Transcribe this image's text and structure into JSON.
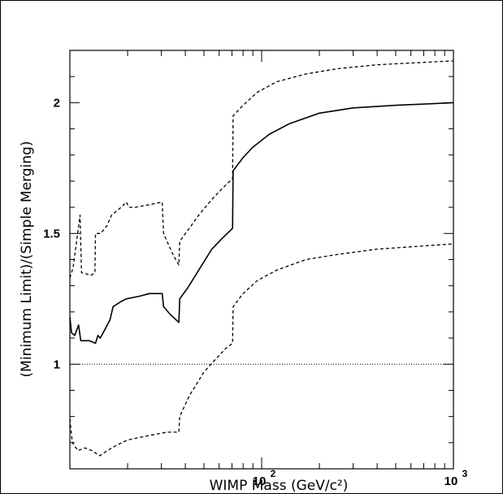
{
  "chart_data": {
    "type": "line",
    "title": "",
    "xlabel": "WIMP Mass (GeV/c²)",
    "ylabel": "(Minimum Limit)/(Simple Merging)",
    "xscale": "log",
    "xlim": [
      10,
      1000
    ],
    "ylim": [
      0.6,
      2.2
    ],
    "grid": false,
    "x_tick_labels": [
      {
        "value": 100,
        "base": "10",
        "exp": "2"
      },
      {
        "value": 1000,
        "base": "10",
        "exp": "3"
      }
    ],
    "y_tick_labels": [
      {
        "value": 1,
        "label": "1"
      },
      {
        "value": 1.5,
        "label": "1.5"
      },
      {
        "value": 2,
        "label": "2"
      }
    ],
    "reference_line": {
      "y": 1.0,
      "style": "dotted"
    },
    "series": [
      {
        "style": "solid",
        "points": [
          [
            10,
            1.18
          ],
          [
            10.2,
            1.12
          ],
          [
            10.6,
            1.11
          ],
          [
            11.1,
            1.15
          ],
          [
            11.4,
            1.09
          ],
          [
            12.6,
            1.09
          ],
          [
            13.6,
            1.08
          ],
          [
            14.0,
            1.11
          ],
          [
            14.4,
            1.1
          ],
          [
            15.4,
            1.14
          ],
          [
            16.2,
            1.17
          ],
          [
            16.8,
            1.22
          ],
          [
            18.5,
            1.24
          ],
          [
            19.7,
            1.25
          ],
          [
            23,
            1.26
          ],
          [
            26,
            1.27
          ],
          [
            30.3,
            1.27
          ],
          [
            30.8,
            1.22
          ],
          [
            33.4,
            1.19
          ],
          [
            37,
            1.16
          ],
          [
            37.4,
            1.25
          ],
          [
            41,
            1.29
          ],
          [
            47,
            1.36
          ],
          [
            55,
            1.44
          ],
          [
            62,
            1.48
          ],
          [
            70.5,
            1.52
          ],
          [
            71,
            1.74
          ],
          [
            80,
            1.79
          ],
          [
            90,
            1.83
          ],
          [
            110,
            1.88
          ],
          [
            140,
            1.92
          ],
          [
            200,
            1.96
          ],
          [
            300,
            1.98
          ],
          [
            500,
            1.99
          ],
          [
            1000,
            2.0
          ]
        ]
      },
      {
        "style": "dashed",
        "points": [
          [
            10,
            1.33
          ],
          [
            10.4,
            1.37
          ],
          [
            11.3,
            1.57
          ],
          [
            11.5,
            1.35
          ],
          [
            12.9,
            1.34
          ],
          [
            13.5,
            1.35
          ],
          [
            13.6,
            1.5
          ],
          [
            14.5,
            1.5
          ],
          [
            15.6,
            1.53
          ],
          [
            16.5,
            1.57
          ],
          [
            18.5,
            1.6
          ],
          [
            19.7,
            1.62
          ],
          [
            20.3,
            1.6
          ],
          [
            22,
            1.6
          ],
          [
            26,
            1.61
          ],
          [
            30.3,
            1.62
          ],
          [
            30.8,
            1.5
          ],
          [
            33,
            1.45
          ],
          [
            35,
            1.41
          ],
          [
            37,
            1.38
          ],
          [
            37.4,
            1.47
          ],
          [
            41,
            1.51
          ],
          [
            47,
            1.57
          ],
          [
            55,
            1.63
          ],
          [
            62,
            1.67
          ],
          [
            70.5,
            1.71
          ],
          [
            71,
            1.95
          ],
          [
            80,
            1.99
          ],
          [
            95,
            2.04
          ],
          [
            120,
            2.08
          ],
          [
            170,
            2.11
          ],
          [
            250,
            2.13
          ],
          [
            400,
            2.145
          ],
          [
            1000,
            2.16
          ]
        ]
      },
      {
        "style": "dashed",
        "points": [
          [
            10,
            0.79
          ],
          [
            10.3,
            0.7
          ],
          [
            11,
            0.67
          ],
          [
            12,
            0.68
          ],
          [
            13,
            0.67
          ],
          [
            14.3,
            0.65
          ],
          [
            15.7,
            0.67
          ],
          [
            17.5,
            0.69
          ],
          [
            20,
            0.71
          ],
          [
            23,
            0.72
          ],
          [
            27,
            0.73
          ],
          [
            32,
            0.74
          ],
          [
            37,
            0.74
          ],
          [
            37.4,
            0.8
          ],
          [
            42,
            0.88
          ],
          [
            50,
            0.97
          ],
          [
            56,
            1.01
          ],
          [
            65,
            1.06
          ],
          [
            70.5,
            1.08
          ],
          [
            71,
            1.22
          ],
          [
            80,
            1.27
          ],
          [
            95,
            1.32
          ],
          [
            120,
            1.36
          ],
          [
            170,
            1.4
          ],
          [
            250,
            1.42
          ],
          [
            400,
            1.44
          ],
          [
            1000,
            1.46
          ]
        ]
      }
    ]
  }
}
